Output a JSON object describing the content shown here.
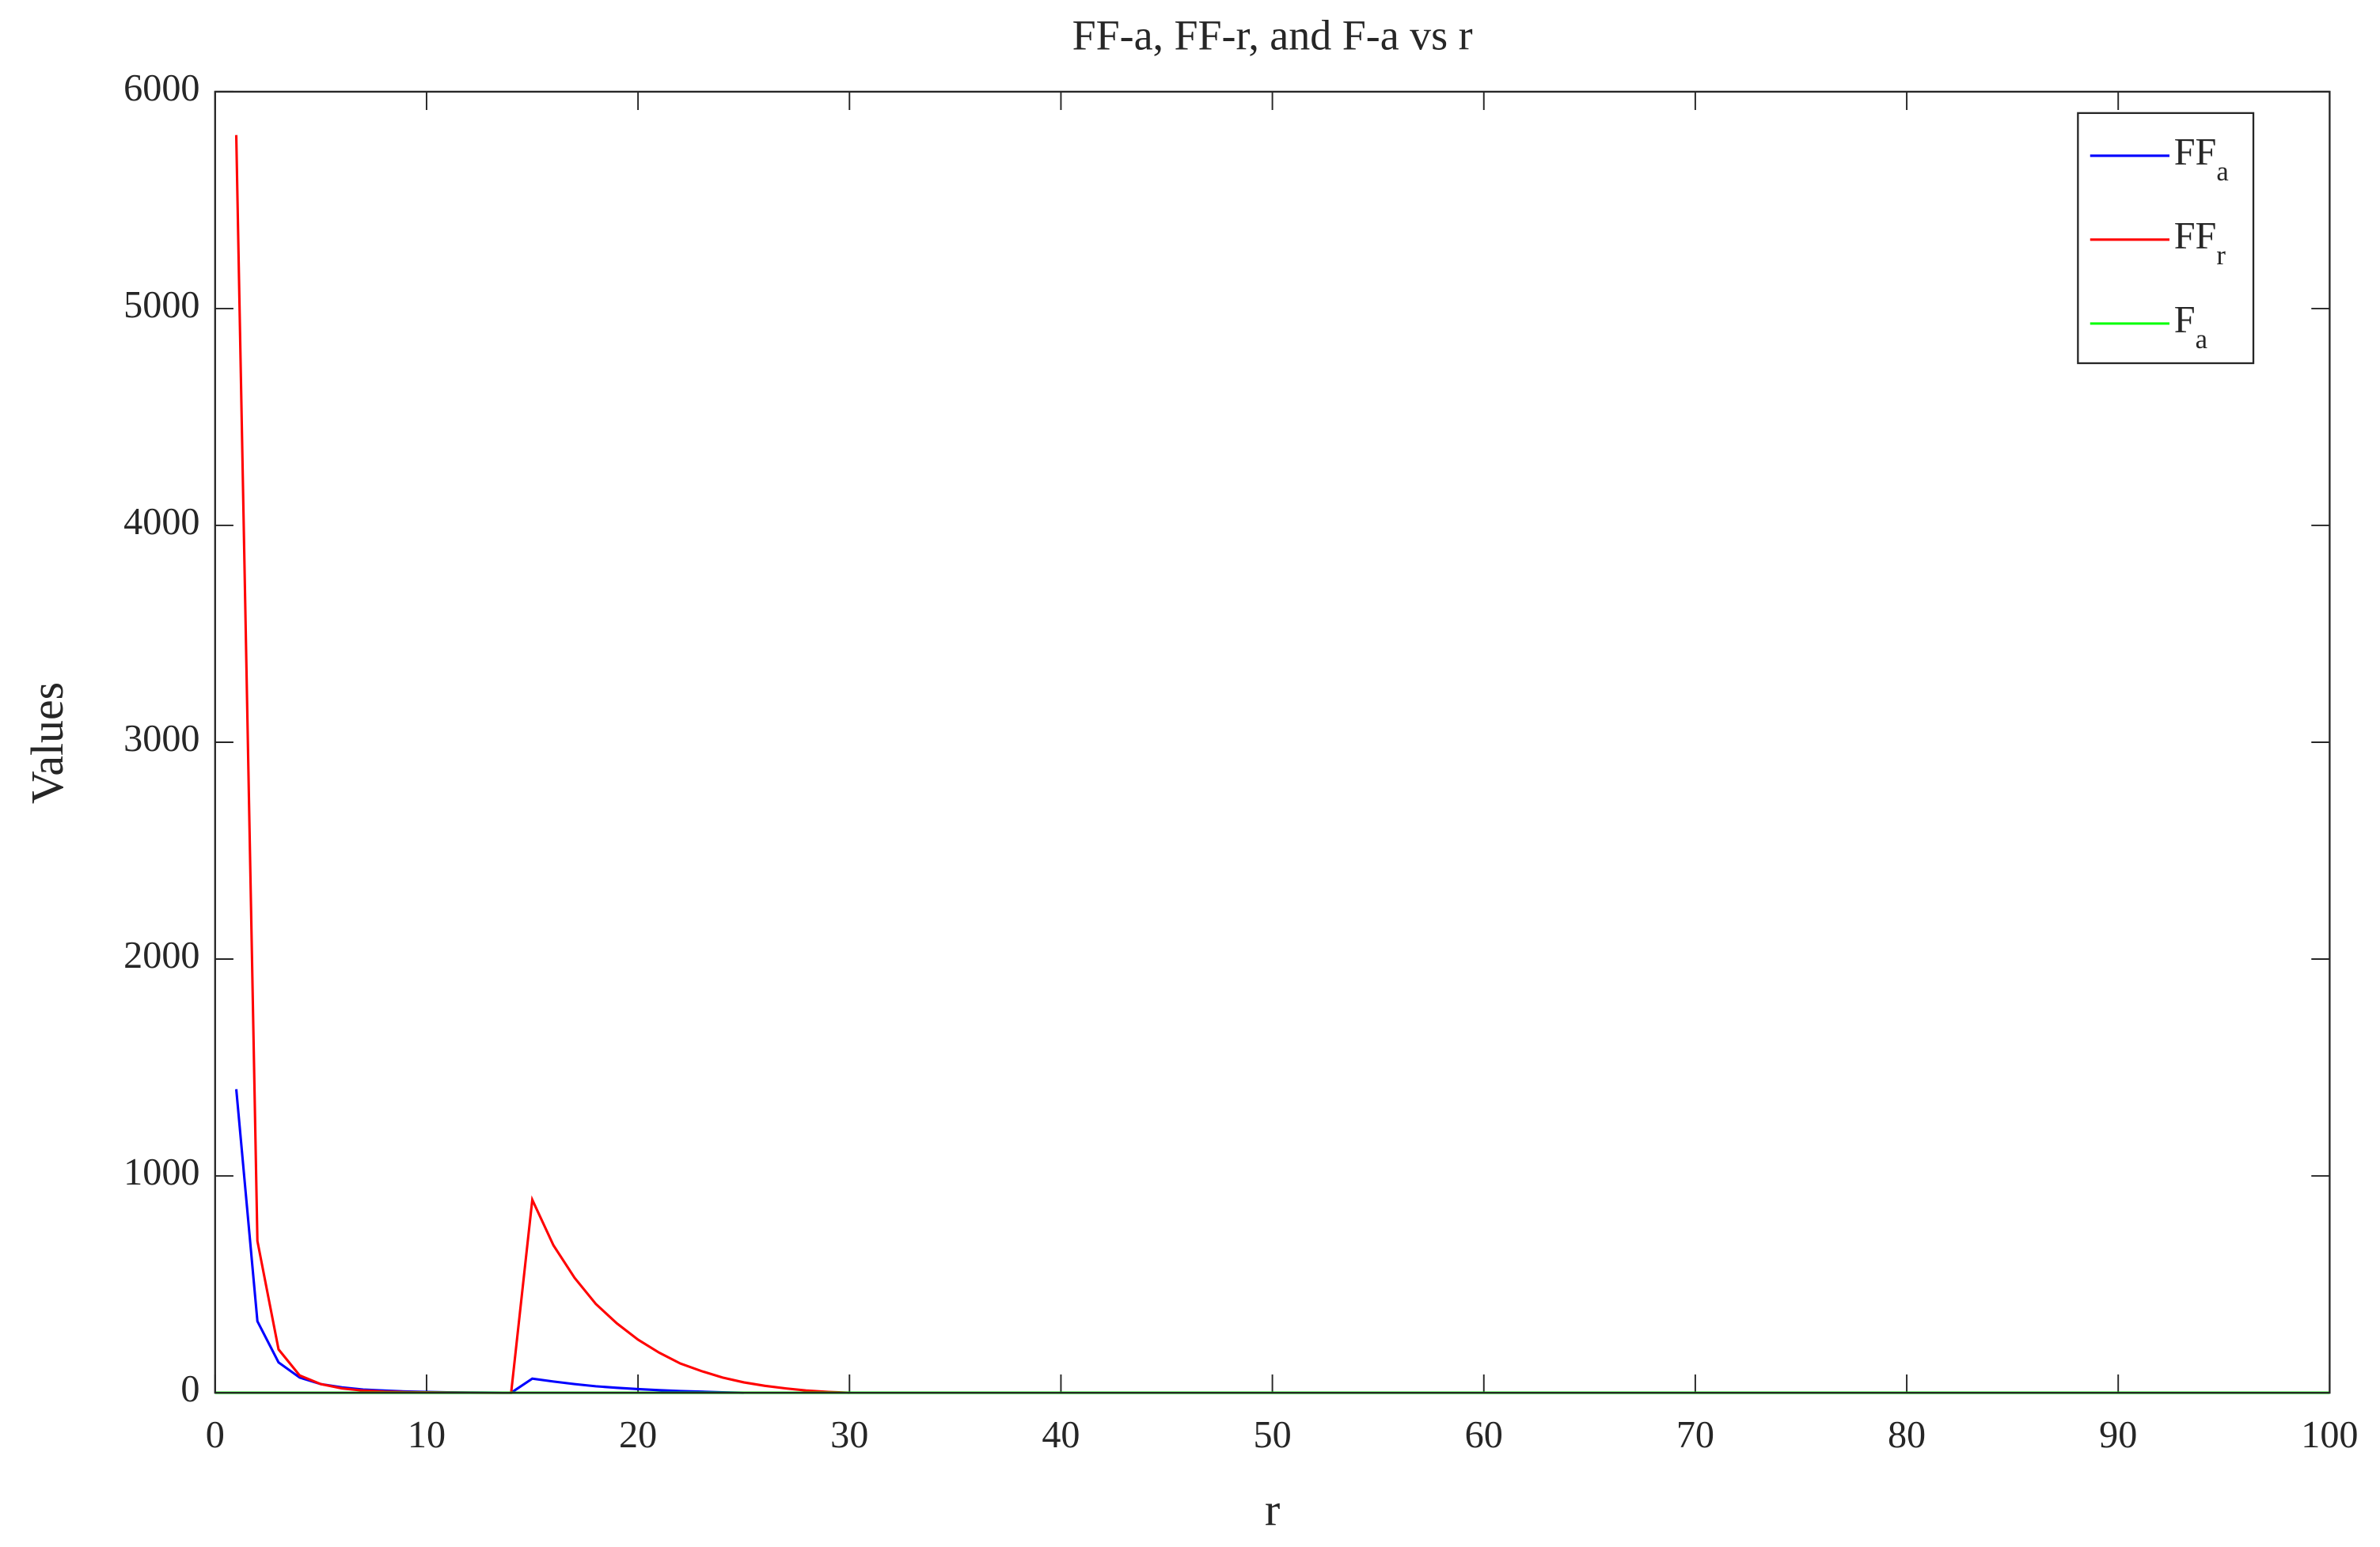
{
  "chart_data": {
    "type": "line",
    "title": "FF-a, FF-r, and F-a vs r",
    "x_label": "r",
    "y_label": "Values",
    "xlim": [
      0,
      100
    ],
    "xticks": [
      0,
      10,
      20,
      30,
      40,
      50,
      60,
      70,
      80,
      90,
      100
    ],
    "ylim": [
      0,
      6000
    ],
    "yticks": [
      0,
      1000,
      2000,
      3000,
      4000,
      5000,
      6000
    ],
    "grid": false,
    "legend": "upper right",
    "series": [
      {
        "name": "FF_a",
        "color": "#0000ff",
        "x": [
          1,
          2,
          3,
          4,
          5,
          6,
          7,
          8,
          9,
          10,
          11,
          12,
          13,
          14,
          15,
          16,
          17,
          18,
          19,
          20,
          21,
          22,
          23,
          24,
          25
        ],
        "values": [
          1400,
          330,
          140,
          70,
          40,
          25,
          15,
          10,
          6,
          4,
          2,
          1,
          0.5,
          0,
          65,
          52,
          40,
          30,
          23,
          17,
          12,
          8,
          5,
          2,
          0
        ]
      },
      {
        "name": "FF_r",
        "color": "#ff0000",
        "x": [
          1,
          2,
          3,
          4,
          5,
          6,
          7,
          8,
          9,
          10,
          11,
          12,
          13,
          14,
          15,
          16,
          17,
          18,
          19,
          20,
          21,
          22,
          23,
          24,
          25,
          26,
          27,
          28,
          29,
          30
        ],
        "values": [
          5800,
          700,
          200,
          80,
          40,
          20,
          10,
          5,
          3,
          2,
          1,
          0.5,
          0.2,
          0,
          890,
          680,
          530,
          410,
          320,
          245,
          185,
          135,
          100,
          70,
          48,
          32,
          20,
          10,
          4,
          0
        ]
      },
      {
        "name": "F_a",
        "color": "#00ff00",
        "x": [
          0,
          100
        ],
        "values": [
          0,
          0
        ]
      }
    ]
  }
}
